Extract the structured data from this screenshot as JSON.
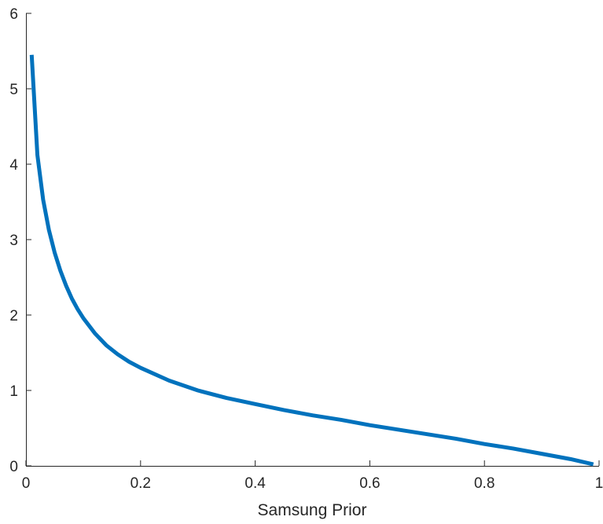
{
  "chart_data": {
    "type": "line",
    "title": "",
    "xlabel": "Samsung Prior",
    "ylabel": "",
    "xlim": [
      0,
      1
    ],
    "ylim": [
      0,
      6
    ],
    "xticks": [
      0,
      0.2,
      0.4,
      0.6,
      0.8,
      1
    ],
    "xtick_labels": [
      "0",
      "0.2",
      "0.4",
      "0.6",
      "0.8",
      "1"
    ],
    "yticks": [
      0,
      1,
      2,
      3,
      4,
      5,
      6
    ],
    "ytick_labels": [
      "0",
      "1",
      "2",
      "3",
      "4",
      "5",
      "6"
    ],
    "grid": false,
    "series": [
      {
        "color": "#0072BD",
        "x": [
          0.01,
          0.02,
          0.03,
          0.04,
          0.05,
          0.06,
          0.07,
          0.08,
          0.09,
          0.1,
          0.12,
          0.14,
          0.16,
          0.18,
          0.2,
          0.25,
          0.3,
          0.35,
          0.4,
          0.45,
          0.5,
          0.55,
          0.6,
          0.65,
          0.7,
          0.75,
          0.8,
          0.85,
          0.9,
          0.95,
          0.99
        ],
        "y": [
          5.45,
          4.12,
          3.53,
          3.13,
          2.83,
          2.59,
          2.39,
          2.22,
          2.08,
          1.96,
          1.76,
          1.6,
          1.48,
          1.38,
          1.3,
          1.13,
          1.0,
          0.9,
          0.82,
          0.74,
          0.67,
          0.61,
          0.54,
          0.48,
          0.42,
          0.36,
          0.29,
          0.23,
          0.16,
          0.09,
          0.02
        ]
      }
    ]
  }
}
